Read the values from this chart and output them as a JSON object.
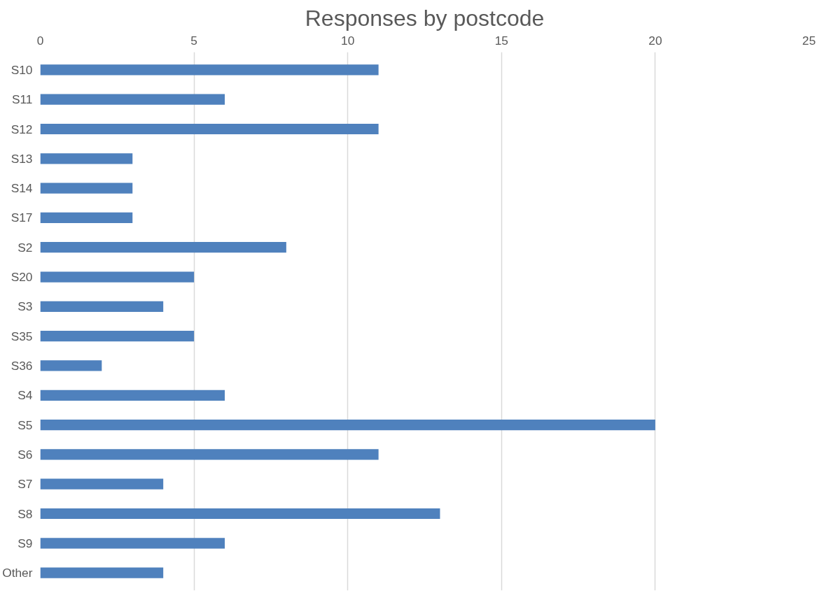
{
  "chart_data": {
    "type": "bar",
    "orientation": "horizontal",
    "title": "Responses by postcode",
    "categories": [
      "S10",
      "S11",
      "S12",
      "S13",
      "S14",
      "S17",
      "S2",
      "S20",
      "S3",
      "S35",
      "S36",
      "S4",
      "S5",
      "S6",
      "S7",
      "S8",
      "S9",
      "Other"
    ],
    "values": [
      11,
      6,
      11,
      3,
      3,
      3,
      8,
      5,
      4,
      5,
      2,
      6,
      20,
      11,
      4,
      13,
      6,
      4
    ],
    "color": "#4f81bd",
    "xlim": [
      0,
      25
    ],
    "xticks": [
      0,
      5,
      10,
      15,
      20,
      25
    ],
    "grid": "x"
  }
}
